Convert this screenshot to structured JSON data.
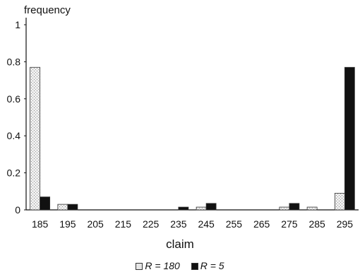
{
  "chart_data": {
    "type": "bar",
    "ylabel": "frequency",
    "xlabel": "claim",
    "categories": [
      "185",
      "195",
      "205",
      "215",
      "225",
      "235",
      "245",
      "255",
      "265",
      "275",
      "285",
      "295"
    ],
    "yticks": [
      "0",
      "0.2",
      "0.4",
      "0.6",
      "0.8",
      "1"
    ],
    "ylim": [
      0,
      1
    ],
    "grid": false,
    "legend_position": "bottom",
    "series": [
      {
        "name": "R = 180",
        "color": "#e0e0e0",
        "values": [
          0.77,
          0.03,
          0,
          0,
          0,
          0,
          0.015,
          0,
          0,
          0.015,
          0.015,
          0.09
        ]
      },
      {
        "name": "R = 5",
        "color": "#111111",
        "values": [
          0.07,
          0.03,
          0,
          0,
          0,
          0.015,
          0.035,
          0,
          0,
          0.035,
          0,
          0.77
        ]
      }
    ]
  }
}
